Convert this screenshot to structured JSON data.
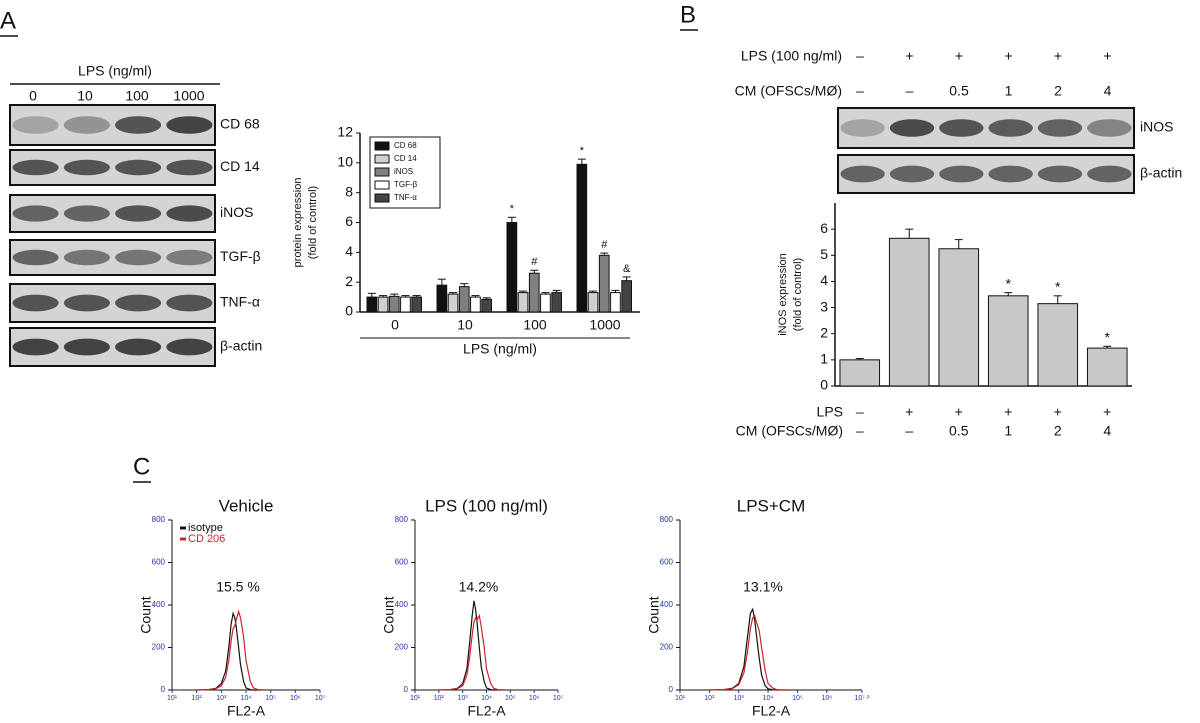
{
  "panels": {
    "A": {
      "label": "A",
      "blot": {
        "header": "LPS (ng/ml)",
        "lanes": [
          "0",
          "10",
          "100",
          "1000"
        ],
        "bands": [
          "CD 68",
          "CD 14",
          "iNOS",
          "TGF-β",
          "TNF-α",
          "β-actin"
        ]
      }
    },
    "B": {
      "label": "B",
      "blot": {
        "rows": [
          {
            "name": "LPS (100 ng/ml)",
            "lanes": [
              "–",
              "+",
              "+",
              "+",
              "+",
              "+"
            ]
          },
          {
            "name": "CM (OFSCs/MØ)",
            "lanes": [
              "–",
              "–",
              "0.5",
              "1",
              "2",
              "4"
            ]
          }
        ],
        "bands": [
          "iNOS",
          "β-actin"
        ]
      }
    },
    "C": {
      "label": "C"
    }
  },
  "chart_data": [
    {
      "type": "bar",
      "categories": [
        "0",
        "10",
        "100",
        "1000"
      ],
      "xlabel": "LPS (ng/ml)",
      "ylabel": [
        "protein expression",
        "(fold of control)"
      ],
      "ylim": [
        0,
        12
      ],
      "yticks": [
        0,
        2,
        4,
        6,
        8,
        10,
        12
      ],
      "legend": "upper left",
      "series": [
        {
          "name": "CD 68",
          "color": "#111111",
          "values": [
            1.0,
            1.8,
            6.0,
            9.9
          ],
          "errors": [
            0.25,
            0.4,
            0.35,
            0.35
          ],
          "significance": [
            null,
            null,
            "*",
            "*"
          ]
        },
        {
          "name": "CD 14",
          "color": "#d0d0d0",
          "values": [
            1.0,
            1.2,
            1.3,
            1.3
          ],
          "errors": [
            0.1,
            0.1,
            0.1,
            0.1
          ]
        },
        {
          "name": "iNOS",
          "color": "#808080",
          "values": [
            1.05,
            1.7,
            2.6,
            3.8
          ],
          "errors": [
            0.15,
            0.2,
            0.2,
            0.15
          ],
          "significance": [
            null,
            null,
            "#",
            "#"
          ]
        },
        {
          "name": "TGF-β",
          "color": "#ffffff",
          "values": [
            1.0,
            1.0,
            1.2,
            1.3
          ],
          "errors": [
            0.1,
            0.1,
            0.1,
            0.15
          ]
        },
        {
          "name": "TNF-α",
          "color": "#444444",
          "values": [
            1.0,
            0.85,
            1.3,
            2.1
          ],
          "errors": [
            0.1,
            0.1,
            0.15,
            0.25
          ],
          "significance": [
            null,
            null,
            null,
            "&"
          ]
        }
      ]
    },
    {
      "type": "bar",
      "category_row_names": [
        "LPS",
        "CM (OFSCs/MØ)"
      ],
      "categories": [
        [
          "–",
          "–"
        ],
        [
          "+",
          "–"
        ],
        [
          "+",
          "0.5"
        ],
        [
          "+",
          "1"
        ],
        [
          "+",
          "2"
        ],
        [
          "+",
          "4"
        ]
      ],
      "ylabel": [
        "iNOS expression",
        "(fold of control)"
      ],
      "ylim": [
        0,
        7
      ],
      "yticks": [
        0,
        1,
        2,
        3,
        4,
        5,
        6
      ],
      "color": "#c8c8c8",
      "values": [
        1.0,
        5.65,
        5.25,
        3.45,
        3.15,
        1.45
      ],
      "errors": [
        0.05,
        0.35,
        0.35,
        0.12,
        0.3,
        0.07
      ],
      "significance": [
        null,
        null,
        null,
        "*",
        "*",
        "*"
      ]
    },
    {
      "type": "line",
      "title": "Vehicle",
      "annotation": "15.5 %",
      "xlabel": "FL2-A",
      "ylabel": "Count",
      "xscale": "log",
      "legend": "upper left",
      "xlim": [
        10,
        10000000
      ],
      "xticks": [
        {
          "value": 10,
          "label": "10¹"
        },
        {
          "value": 100,
          "label": "10²"
        },
        {
          "value": 1000,
          "label": "10³"
        },
        {
          "value": 10000,
          "label": "10⁴"
        },
        {
          "value": 100000,
          "label": "10⁵"
        },
        {
          "value": 1000000,
          "label": "10⁶"
        },
        {
          "value": 10000000,
          "label": "10⁷"
        }
      ],
      "ylim": [
        0,
        800
      ],
      "yticks": [
        0,
        200,
        400,
        600,
        800
      ],
      "x": [
        100,
        300,
        600,
        1000,
        1500,
        2000,
        2500,
        3000,
        3500,
        4000,
        5000,
        6000,
        8000,
        10000,
        15000,
        20000,
        30000,
        50000
      ],
      "series": [
        {
          "name": "isotype",
          "color": "#111111",
          "values": [
            0,
            2,
            8,
            30,
            90,
            200,
            310,
            360,
            340,
            300,
            200,
            120,
            40,
            10,
            2,
            0,
            0,
            0
          ]
        },
        {
          "name": "CD 206",
          "color": "#d42030",
          "values": [
            0,
            2,
            6,
            20,
            60,
            140,
            230,
            290,
            300,
            330,
            370,
            340,
            250,
            140,
            40,
            10,
            2,
            0
          ]
        }
      ]
    },
    {
      "type": "line",
      "title": "LPS (100 ng/ml)",
      "annotation": "14.2%",
      "xlabel": "FL2-A",
      "ylabel": "Count",
      "xscale": "log",
      "xlim": [
        10,
        10000000
      ],
      "xticks": [
        {
          "value": 10,
          "label": "10¹"
        },
        {
          "value": 100,
          "label": "10²"
        },
        {
          "value": 1000,
          "label": "10³"
        },
        {
          "value": 10000,
          "label": "10⁴"
        },
        {
          "value": 100000,
          "label": "10⁵"
        },
        {
          "value": 1000000,
          "label": "10⁶"
        },
        {
          "value": 10000000,
          "label": "10⁷"
        }
      ],
      "ylim": [
        0,
        800
      ],
      "yticks": [
        0,
        200,
        400,
        600,
        800
      ],
      "x": [
        100,
        300,
        600,
        1000,
        1500,
        2000,
        2500,
        3000,
        3500,
        4000,
        5000,
        6000,
        8000,
        10000,
        15000,
        20000,
        30000,
        50000
      ],
      "series": [
        {
          "color": "#111111",
          "values": [
            0,
            2,
            8,
            30,
            100,
            230,
            350,
            420,
            380,
            320,
            200,
            110,
            40,
            10,
            2,
            0,
            0,
            0
          ]
        },
        {
          "color": "#d42030",
          "values": [
            0,
            2,
            6,
            20,
            70,
            160,
            260,
            320,
            340,
            330,
            350,
            300,
            200,
            100,
            30,
            8,
            2,
            0
          ]
        }
      ]
    },
    {
      "type": "line",
      "title": "LPS+CM",
      "annotation": "13.1%",
      "xlabel": "FL2-A",
      "ylabel": "Count",
      "xscale": "log",
      "xlim": [
        10,
        15848932
      ],
      "xticks": [
        {
          "value": 10,
          "label": "10¹"
        },
        {
          "value": 100,
          "label": "10²"
        },
        {
          "value": 1000,
          "label": "10³"
        },
        {
          "value": 10000,
          "label": "10⁴"
        },
        {
          "value": 100000,
          "label": "10⁵"
        },
        {
          "value": 1000000,
          "label": "10⁶"
        },
        {
          "value": 15848932,
          "label": "10⁷·²"
        }
      ],
      "ylim": [
        0,
        800
      ],
      "yticks": [
        0,
        200,
        400,
        600,
        800
      ],
      "x": [
        100,
        300,
        600,
        1000,
        1500,
        2000,
        2500,
        3000,
        3500,
        4000,
        5000,
        6000,
        8000,
        10000,
        15000,
        20000,
        30000,
        50000
      ],
      "series": [
        {
          "color": "#111111",
          "values": [
            0,
            2,
            8,
            30,
            110,
            250,
            360,
            380,
            330,
            260,
            150,
            70,
            20,
            5,
            1,
            0,
            0,
            0
          ]
        },
        {
          "color": "#d42030",
          "values": [
            0,
            2,
            6,
            25,
            80,
            180,
            290,
            340,
            350,
            320,
            280,
            200,
            90,
            30,
            8,
            2,
            0,
            0
          ]
        }
      ]
    }
  ]
}
